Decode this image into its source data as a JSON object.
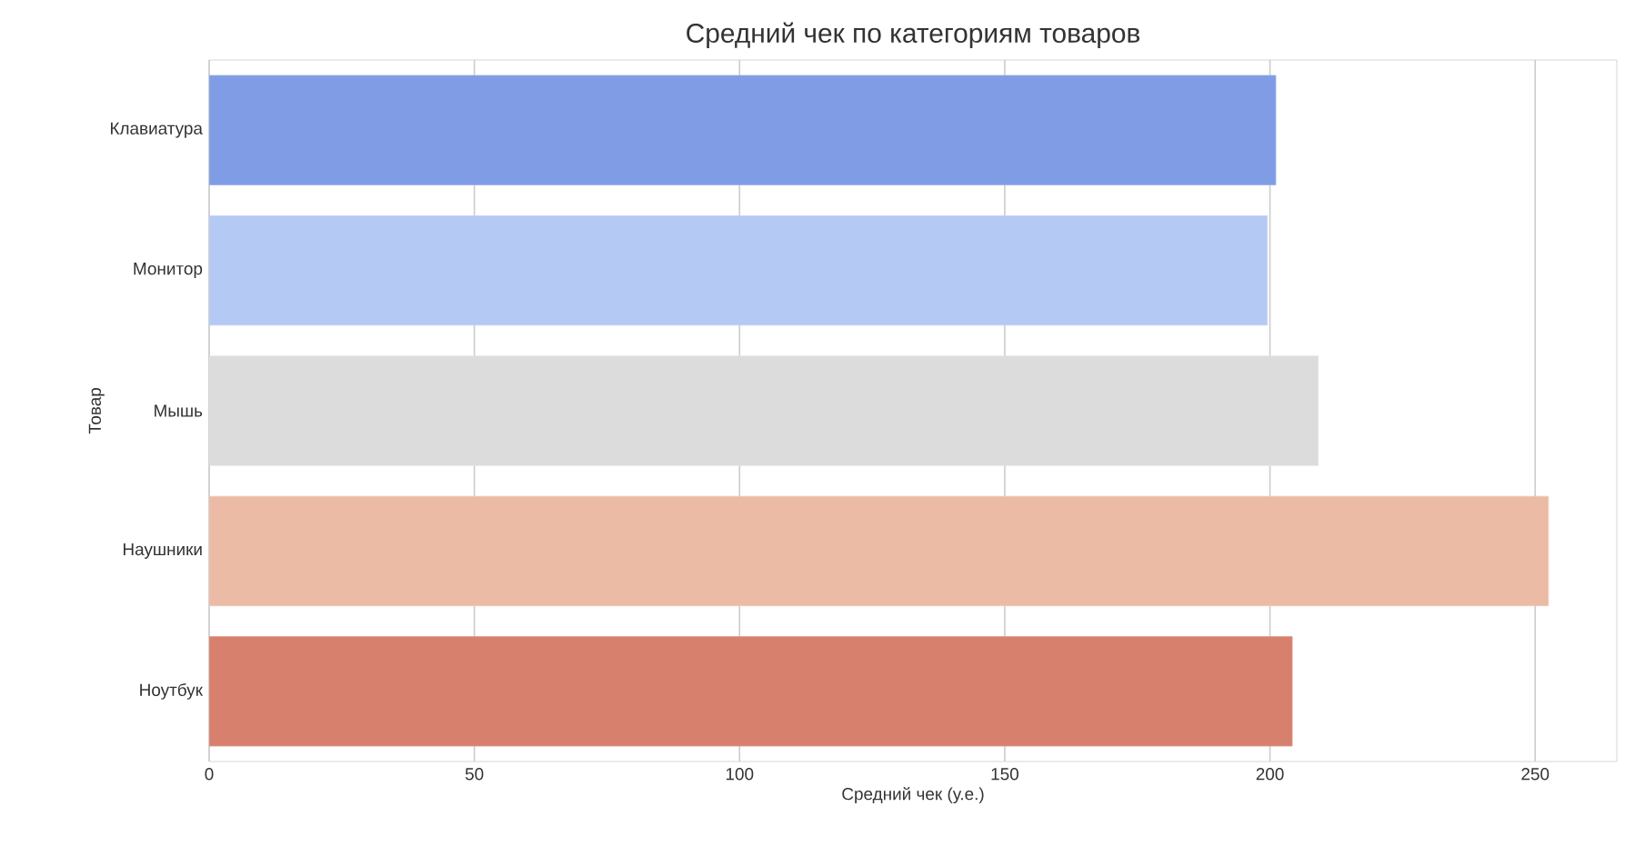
{
  "chart_data": {
    "type": "bar",
    "orientation": "horizontal",
    "title": "Средний чек по категориям товаров",
    "xlabel": "Средний чек (у.е.)",
    "ylabel": "Товар",
    "categories": [
      "Клавиатура",
      "Монитор",
      "Мышь",
      "Наушники",
      "Ноутбук"
    ],
    "values": [
      201.1,
      199.5,
      209.1,
      252.5,
      204.2
    ],
    "colors": [
      "#7f9ce5",
      "#b4c9f4",
      "#dcdcdc",
      "#ebbba5",
      "#d6806d"
    ],
    "xlim": [
      0,
      265.4
    ],
    "xticks": [
      0,
      50,
      100,
      150,
      200,
      250
    ],
    "grid": "x"
  }
}
